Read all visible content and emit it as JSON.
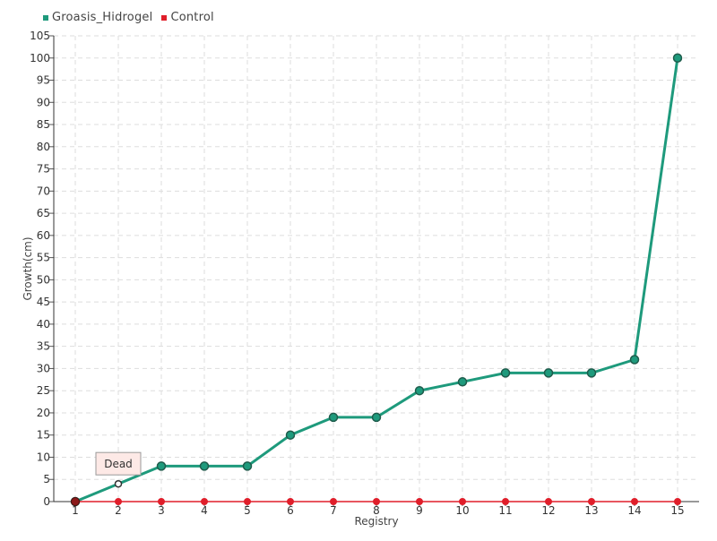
{
  "chart_data": {
    "type": "line",
    "title": "",
    "xlabel": "Registry",
    "ylabel": "Growth(cm)",
    "categories": [
      "1",
      "2",
      "3",
      "4",
      "5",
      "6",
      "7",
      "8",
      "9",
      "10",
      "11",
      "12",
      "13",
      "14",
      "15"
    ],
    "ylim": [
      0,
      105
    ],
    "ytick_step": 5,
    "grid": true,
    "legend_position": "top-left",
    "series": [
      {
        "name": "Groasis_Hidrogel",
        "color": "#1e9a7c",
        "values": [
          0,
          4,
          8,
          8,
          8,
          15,
          19,
          19,
          25,
          27,
          29,
          29,
          29,
          32,
          100
        ]
      },
      {
        "name": "Control",
        "color": "#e01e2a",
        "values": [
          0,
          0,
          0,
          0,
          0,
          0,
          0,
          0,
          0,
          0,
          0,
          0,
          0,
          0,
          0
        ]
      }
    ],
    "annotations": [
      {
        "text": "Dead",
        "series": "Groasis_Hidrogel",
        "category": "2"
      }
    ]
  }
}
